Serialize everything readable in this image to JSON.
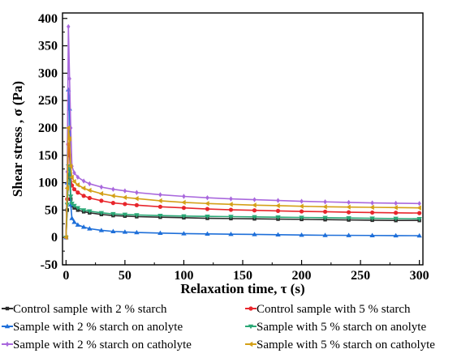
{
  "chart_data": {
    "type": "line",
    "title": "",
    "xlabel": "Relaxation time, τ (s)",
    "ylabel": "Shear stress , σ (Pa)",
    "xlim": [
      -3,
      303
    ],
    "ylim": [
      -50,
      410
    ],
    "xticks": [
      0,
      50,
      100,
      150,
      200,
      250,
      300
    ],
    "yticks": [
      -50,
      0,
      50,
      100,
      150,
      200,
      250,
      300,
      350,
      400
    ],
    "x_tick_labels": [
      "0",
      "50",
      "100",
      "150",
      "200",
      "250",
      "300"
    ],
    "y_tick_labels": [
      "-50",
      "0",
      "50",
      "100",
      "150",
      "200",
      "250",
      "300",
      "350",
      "400"
    ],
    "grid": false,
    "legend_position": "bottom",
    "x": [
      0,
      1,
      2,
      3,
      4,
      5,
      7,
      10,
      15,
      20,
      30,
      40,
      50,
      60,
      80,
      100,
      120,
      140,
      160,
      180,
      200,
      220,
      240,
      260,
      280,
      300
    ],
    "series": [
      {
        "name": "Control sample with 2 % starch",
        "color": "#2b2b2b",
        "marker": "square",
        "values": [
          0,
          50,
          120,
          110,
          70,
          58,
          54,
          50,
          47,
          45,
          42,
          40,
          39,
          38,
          37,
          36,
          35,
          34.5,
          34,
          33.5,
          33,
          32.5,
          32,
          31.5,
          31,
          31
        ]
      },
      {
        "name": "Control sample with 5 % starch",
        "color": "#e8262c",
        "marker": "circle",
        "values": [
          0,
          70,
          170,
          150,
          110,
          95,
          88,
          82,
          76,
          72,
          67,
          63,
          61,
          59,
          56,
          54,
          52,
          50.5,
          49.5,
          48.5,
          47.5,
          47,
          46,
          45.5,
          45,
          44.5
        ]
      },
      {
        "name": "Sample with 2 % starch on anolyte",
        "color": "#1e6fd9",
        "marker": "triangle-up",
        "values": [
          0,
          100,
          270,
          235,
          60,
          35,
          28,
          23,
          19,
          16,
          13,
          11,
          10,
          9,
          8,
          7,
          6.5,
          6,
          5.5,
          5,
          4.5,
          4,
          3.8,
          3.6,
          3.4,
          3.2
        ]
      },
      {
        "name": "Sample with 5 % starch on anolyte",
        "color": "#2aa876",
        "marker": "triangle-down",
        "values": [
          0,
          60,
          130,
          120,
          75,
          62,
          58,
          54,
          50,
          48,
          45,
          43,
          42,
          41,
          40,
          39,
          38.5,
          38,
          37.5,
          37,
          36.5,
          36,
          35.5,
          35,
          34.5,
          34
        ]
      },
      {
        "name": "Sample with 2 % starch on catholyte",
        "color": "#a968dd",
        "marker": "diamond",
        "values": [
          0,
          120,
          385,
          290,
          200,
          130,
          118,
          110,
          103,
          98,
          92,
          88,
          85,
          82,
          78,
          75,
          72.5,
          70.5,
          69,
          67.5,
          66,
          65,
          64,
          63,
          62.5,
          62
        ]
      },
      {
        "name": "Sample with 5 % starch on catholyte",
        "color": "#d4a017",
        "marker": "left-triangle",
        "values": [
          0,
          90,
          200,
          180,
          130,
          110,
          102,
          96,
          90,
          86,
          80,
          76,
          73,
          71,
          67,
          64,
          62,
          60.5,
          59,
          58,
          57,
          56,
          55.5,
          55,
          54.5,
          54
        ]
      }
    ]
  }
}
